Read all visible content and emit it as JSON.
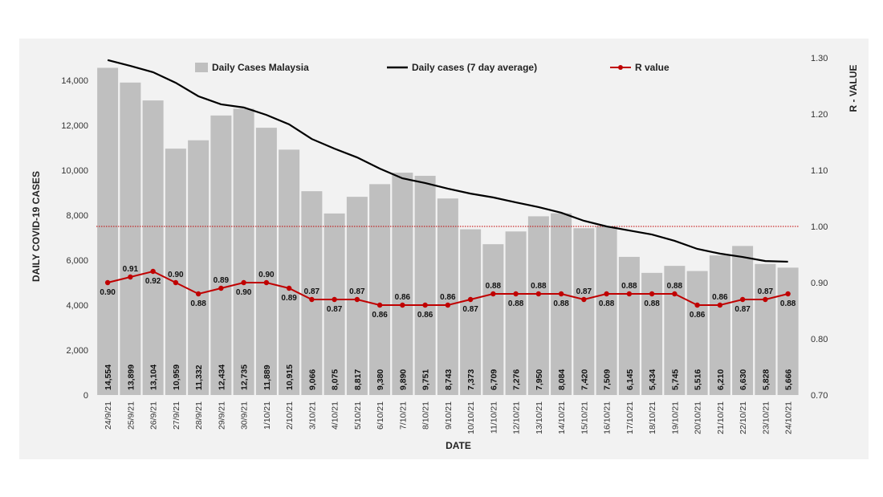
{
  "chart_data": {
    "type": "bar+line",
    "xlabel": "DATE",
    "ylabel": "DAILY COVID-19 CASES",
    "y2label": "R - VALUE",
    "ylim": [
      0,
      15000
    ],
    "y_ticks": [
      0,
      2000,
      4000,
      6000,
      8000,
      10000,
      12000,
      14000
    ],
    "y_tick_labels": [
      "0",
      "2,000",
      "4,000",
      "6,000",
      "8,000",
      "10,000",
      "12,000",
      "14,000"
    ],
    "y2lim": [
      0.7,
      1.3
    ],
    "y2_ticks": [
      0.7,
      0.8,
      0.9,
      1.0,
      1.1,
      1.2,
      1.3
    ],
    "y2_tick_labels": [
      "0.70",
      "0.80",
      "0.90",
      "1.00",
      "1.10",
      "1.20",
      "1.30"
    ],
    "reference_line": {
      "axis": "y2",
      "value": 1.0,
      "color": "#c00000"
    },
    "categories": [
      "24/9/21",
      "25/9/21",
      "26/9/21",
      "27/9/21",
      "28/9/21",
      "29/9/21",
      "30/9/21",
      "1/10/21",
      "2/10/21",
      "3/10/21",
      "4/10/21",
      "5/10/21",
      "6/10/21",
      "7/10/21",
      "8/10/21",
      "9/10/21",
      "10/10/21",
      "11/10/21",
      "12/10/21",
      "13/10/21",
      "14/10/21",
      "15/10/21",
      "16/10/21",
      "17/10/21",
      "18/10/21",
      "19/10/21",
      "20/10/21",
      "21/10/21",
      "22/10/21",
      "23/10/21",
      "24/10/21"
    ],
    "series": [
      {
        "name": "Daily Cases Malaysia",
        "type": "bar",
        "color": "#bfbfbf",
        "values": [
          14554,
          13899,
          13104,
          10959,
          11332,
          12434,
          12735,
          11889,
          10915,
          9066,
          8075,
          8817,
          9380,
          9890,
          9751,
          8743,
          7373,
          6709,
          7276,
          7950,
          8084,
          7420,
          7509,
          6145,
          5434,
          5745,
          5516,
          6210,
          6630,
          5828,
          5666
        ],
        "labels": [
          "14,554",
          "13,899",
          "13,104",
          "10,959",
          "11,332",
          "12,434",
          "12,735",
          "11,889",
          "10,915",
          "9,066",
          "8,075",
          "8,817",
          "9,380",
          "9,890",
          "9,751",
          "8,743",
          "7,373",
          "6,709",
          "7,276",
          "7,950",
          "8,084",
          "7,420",
          "7,509",
          "6,145",
          "5,434",
          "5,745",
          "5,516",
          "6,210",
          "6,630",
          "5,828",
          "5,666"
        ]
      },
      {
        "name": "Daily cases (7 day average)",
        "type": "line",
        "color": "#000000",
        "values": [
          14900,
          14640,
          14360,
          13890,
          13290,
          12930,
          12790,
          12460,
          12040,
          11390,
          10960,
          10570,
          10070,
          9640,
          9430,
          9180,
          8960,
          8790,
          8570,
          8360,
          8110,
          7750,
          7500,
          7320,
          7140,
          6860,
          6500,
          6290,
          6140,
          5960,
          5930
        ]
      },
      {
        "name": "R value",
        "type": "line",
        "axis": "y2",
        "color": "#c00000",
        "values": [
          0.9,
          0.91,
          0.92,
          0.9,
          0.88,
          0.89,
          0.9,
          0.9,
          0.89,
          0.87,
          0.87,
          0.87,
          0.86,
          0.86,
          0.86,
          0.86,
          0.87,
          0.88,
          0.88,
          0.88,
          0.88,
          0.87,
          0.88,
          0.88,
          0.88,
          0.88,
          0.86,
          0.86,
          0.87,
          0.87,
          0.88
        ]
      }
    ],
    "legend": "top"
  }
}
